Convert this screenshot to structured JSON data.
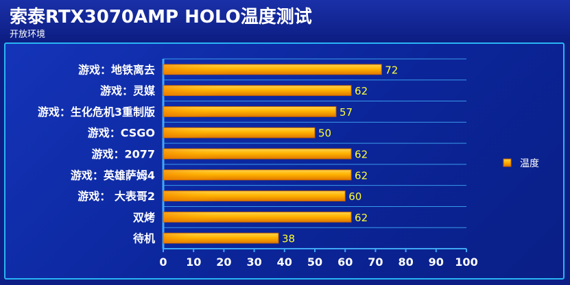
{
  "header": {
    "title": "索泰RTX3070AMP HOLO温度测试",
    "subtitle": "开放环境"
  },
  "colors": {
    "background": "#0d1f86",
    "panel_border": "#29b6f6",
    "grid": "#3fa9f5",
    "bar_fill": "#ffb300",
    "value_label": "#ffff33",
    "text": "#ffffff"
  },
  "chart_data": {
    "type": "bar",
    "orientation": "horizontal",
    "categories": [
      "游戏：地铁离去",
      "游戏：灵媒",
      "游戏：生化危机3重制版",
      "游戏：CSGO",
      "游戏：2077",
      "游戏：英雄萨姆4",
      "游戏： 大表哥2",
      "双烤",
      "待机"
    ],
    "series": [
      {
        "name": "温度",
        "values": [
          72,
          62,
          57,
          50,
          62,
          62,
          60,
          62,
          38
        ]
      }
    ],
    "xlim": [
      0,
      100
    ],
    "xticks": [
      0,
      10,
      20,
      30,
      40,
      50,
      60,
      70,
      80,
      90,
      100
    ],
    "data_labels": true,
    "grid": true,
    "legend": "right"
  }
}
